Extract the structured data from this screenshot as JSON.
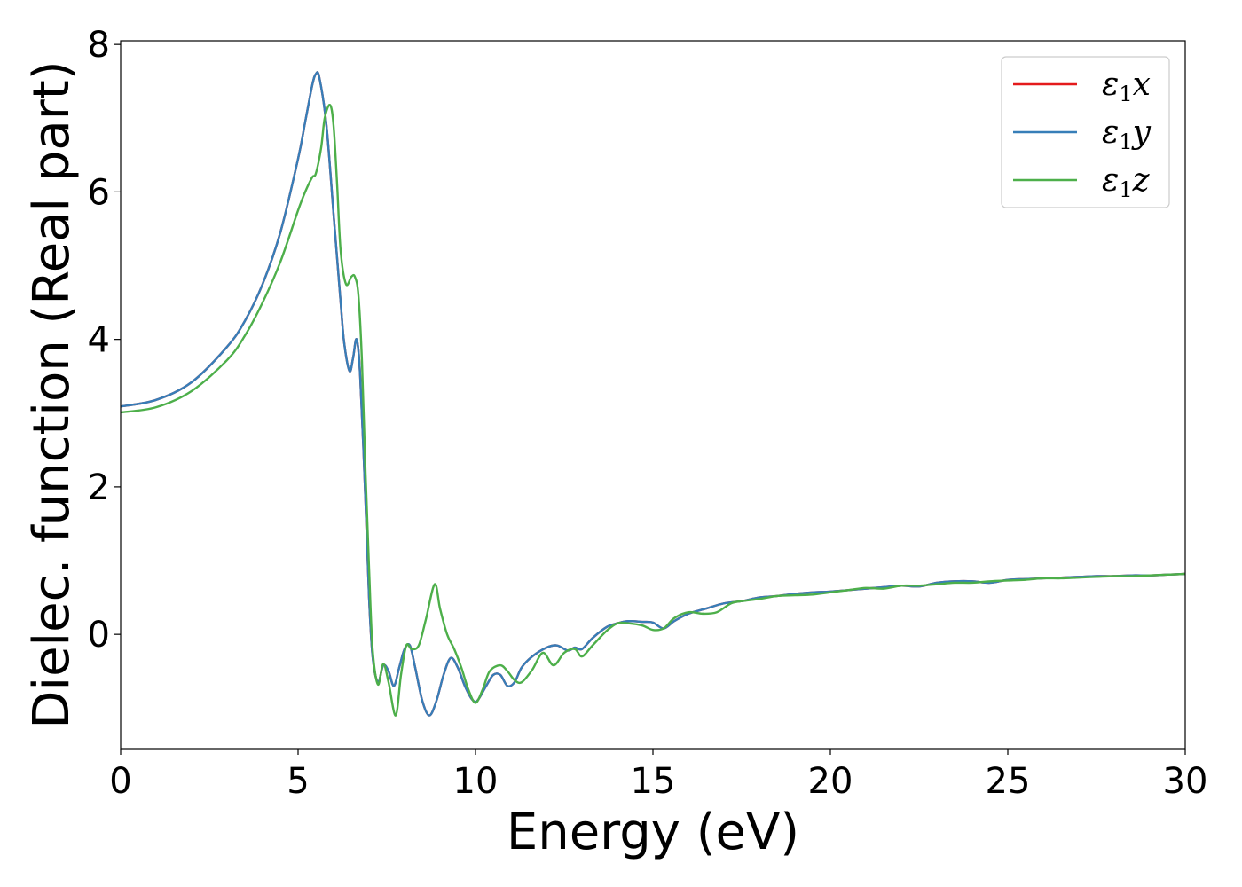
{
  "chart_data": {
    "type": "line",
    "title": "",
    "xlabel": "Energy (eV)",
    "ylabel": "Dielec. function (Real part)",
    "xlim": [
      0,
      30
    ],
    "ylim": [
      -1.55,
      8.05
    ],
    "xticks": [
      0,
      5,
      10,
      15,
      20,
      25,
      30
    ],
    "yticks": [
      0,
      2,
      4,
      6,
      8
    ],
    "grid": false,
    "legend_position": "top-right",
    "series": [
      {
        "name": "ε1x",
        "legend_symbol": "ε",
        "legend_subscript": "1",
        "legend_axis": "x",
        "color": "#e41a1c",
        "x": [
          0,
          1,
          2,
          3,
          3.5,
          4,
          4.5,
          5,
          5.2,
          5.4,
          5.5,
          5.6,
          5.8,
          6.0,
          6.2,
          6.3,
          6.45,
          6.55,
          6.65,
          6.75,
          6.9,
          7.0,
          7.1,
          7.25,
          7.4,
          7.55,
          7.7,
          7.85,
          8.0,
          8.15,
          8.3,
          8.5,
          8.7,
          8.9,
          9.1,
          9.3,
          9.5,
          9.7,
          9.9,
          10.05,
          10.3,
          10.5,
          10.7,
          10.9,
          11.1,
          11.3,
          11.6,
          12.0,
          12.3,
          12.6,
          12.8,
          13.0,
          13.3,
          13.7,
          14.0,
          14.3,
          14.7,
          15.0,
          15.3,
          15.6,
          16.0,
          16.5,
          17.0,
          17.5,
          18.0,
          18.5,
          19.0,
          19.5,
          20.0,
          20.5,
          21.0,
          21.5,
          22.0,
          22.5,
          23.0,
          23.5,
          24.0,
          24.5,
          25.0,
          25.5,
          26.0,
          26.5,
          27.0,
          27.5,
          28.0,
          28.5,
          29.0,
          29.5,
          30.0
        ],
        "y": [
          3.09,
          3.18,
          3.42,
          3.9,
          4.25,
          4.75,
          5.45,
          6.45,
          6.95,
          7.45,
          7.6,
          7.55,
          6.9,
          5.7,
          4.5,
          3.95,
          3.57,
          3.75,
          4.0,
          3.5,
          1.8,
          0.5,
          -0.3,
          -0.65,
          -0.42,
          -0.5,
          -0.7,
          -0.45,
          -0.2,
          -0.15,
          -0.45,
          -0.9,
          -1.1,
          -0.9,
          -0.55,
          -0.32,
          -0.45,
          -0.7,
          -0.88,
          -0.9,
          -0.7,
          -0.55,
          -0.55,
          -0.7,
          -0.65,
          -0.45,
          -0.3,
          -0.18,
          -0.15,
          -0.22,
          -0.18,
          -0.2,
          -0.05,
          0.1,
          0.15,
          0.18,
          0.17,
          0.16,
          0.08,
          0.18,
          0.28,
          0.35,
          0.42,
          0.45,
          0.5,
          0.52,
          0.55,
          0.57,
          0.58,
          0.6,
          0.62,
          0.64,
          0.66,
          0.65,
          0.7,
          0.72,
          0.72,
          0.7,
          0.74,
          0.75,
          0.76,
          0.77,
          0.78,
          0.79,
          0.79,
          0.8,
          0.8,
          0.81,
          0.82
        ]
      },
      {
        "name": "ε1y",
        "legend_symbol": "ε",
        "legend_subscript": "1",
        "legend_axis": "y",
        "color": "#377eb8",
        "x": [
          0,
          1,
          2,
          3,
          3.5,
          4,
          4.5,
          5,
          5.2,
          5.4,
          5.5,
          5.6,
          5.8,
          6.0,
          6.2,
          6.3,
          6.45,
          6.55,
          6.65,
          6.75,
          6.9,
          7.0,
          7.1,
          7.25,
          7.4,
          7.55,
          7.7,
          7.85,
          8.0,
          8.15,
          8.3,
          8.5,
          8.7,
          8.9,
          9.1,
          9.3,
          9.5,
          9.7,
          9.9,
          10.05,
          10.3,
          10.5,
          10.7,
          10.9,
          11.1,
          11.3,
          11.6,
          12.0,
          12.3,
          12.6,
          12.8,
          13.0,
          13.3,
          13.7,
          14.0,
          14.3,
          14.7,
          15.0,
          15.3,
          15.6,
          16.0,
          16.5,
          17.0,
          17.5,
          18.0,
          18.5,
          19.0,
          19.5,
          20.0,
          20.5,
          21.0,
          21.5,
          22.0,
          22.5,
          23.0,
          23.5,
          24.0,
          24.5,
          25.0,
          25.5,
          26.0,
          26.5,
          27.0,
          27.5,
          28.0,
          28.5,
          29.0,
          29.5,
          30.0
        ],
        "y": [
          3.09,
          3.18,
          3.42,
          3.9,
          4.25,
          4.75,
          5.45,
          6.45,
          6.95,
          7.45,
          7.6,
          7.55,
          6.9,
          5.7,
          4.5,
          3.95,
          3.57,
          3.75,
          4.0,
          3.5,
          1.8,
          0.5,
          -0.3,
          -0.65,
          -0.42,
          -0.5,
          -0.7,
          -0.45,
          -0.2,
          -0.15,
          -0.45,
          -0.9,
          -1.1,
          -0.9,
          -0.55,
          -0.32,
          -0.45,
          -0.7,
          -0.88,
          -0.9,
          -0.7,
          -0.55,
          -0.55,
          -0.7,
          -0.65,
          -0.45,
          -0.3,
          -0.18,
          -0.15,
          -0.22,
          -0.18,
          -0.2,
          -0.05,
          0.1,
          0.15,
          0.18,
          0.17,
          0.16,
          0.08,
          0.18,
          0.28,
          0.35,
          0.42,
          0.45,
          0.5,
          0.52,
          0.55,
          0.57,
          0.58,
          0.6,
          0.62,
          0.64,
          0.66,
          0.65,
          0.7,
          0.72,
          0.72,
          0.7,
          0.74,
          0.75,
          0.76,
          0.77,
          0.78,
          0.79,
          0.79,
          0.8,
          0.8,
          0.81,
          0.82
        ]
      },
      {
        "name": "ε1z",
        "legend_symbol": "ε",
        "legend_subscript": "1",
        "legend_axis": "z",
        "color": "#4daf4a",
        "x": [
          0,
          1,
          2,
          3,
          3.5,
          4,
          4.5,
          5,
          5.2,
          5.4,
          5.5,
          5.65,
          5.75,
          5.9,
          6.0,
          6.1,
          6.2,
          6.35,
          6.5,
          6.6,
          6.7,
          6.8,
          6.9,
          7.0,
          7.1,
          7.25,
          7.4,
          7.55,
          7.75,
          7.9,
          8.05,
          8.2,
          8.4,
          8.6,
          8.85,
          9.0,
          9.2,
          9.4,
          9.6,
          9.8,
          10.0,
          10.2,
          10.4,
          10.7,
          10.9,
          11.1,
          11.3,
          11.6,
          11.9,
          12.2,
          12.5,
          12.8,
          13.0,
          13.3,
          13.7,
          14.0,
          14.3,
          14.7,
          15.0,
          15.3,
          15.6,
          16.0,
          16.4,
          16.8,
          17.2,
          17.5,
          18.0,
          18.5,
          19.0,
          19.5,
          20.0,
          20.5,
          21.0,
          21.5,
          22.0,
          22.5,
          23.0,
          23.5,
          24.0,
          24.5,
          25.0,
          25.5,
          26.0,
          26.5,
          27.0,
          27.5,
          28.0,
          28.5,
          29.0,
          29.5,
          30.0
        ],
        "y": [
          3.01,
          3.08,
          3.3,
          3.72,
          4.05,
          4.5,
          5.05,
          5.75,
          6.0,
          6.2,
          6.25,
          6.6,
          7.0,
          7.18,
          6.9,
          6.1,
          5.2,
          4.75,
          4.85,
          4.85,
          4.6,
          3.7,
          2.2,
          0.9,
          -0.2,
          -0.68,
          -0.4,
          -0.65,
          -1.1,
          -0.55,
          -0.15,
          -0.2,
          -0.15,
          0.2,
          0.68,
          0.35,
          0.0,
          -0.2,
          -0.45,
          -0.75,
          -0.93,
          -0.75,
          -0.5,
          -0.42,
          -0.5,
          -0.62,
          -0.65,
          -0.48,
          -0.25,
          -0.42,
          -0.25,
          -0.2,
          -0.3,
          -0.15,
          0.05,
          0.15,
          0.15,
          0.12,
          0.06,
          0.08,
          0.22,
          0.3,
          0.28,
          0.3,
          0.42,
          0.45,
          0.48,
          0.52,
          0.53,
          0.54,
          0.57,
          0.6,
          0.63,
          0.62,
          0.66,
          0.66,
          0.68,
          0.7,
          0.7,
          0.72,
          0.73,
          0.74,
          0.76,
          0.76,
          0.77,
          0.78,
          0.79,
          0.79,
          0.8,
          0.81,
          0.82
        ]
      }
    ]
  }
}
